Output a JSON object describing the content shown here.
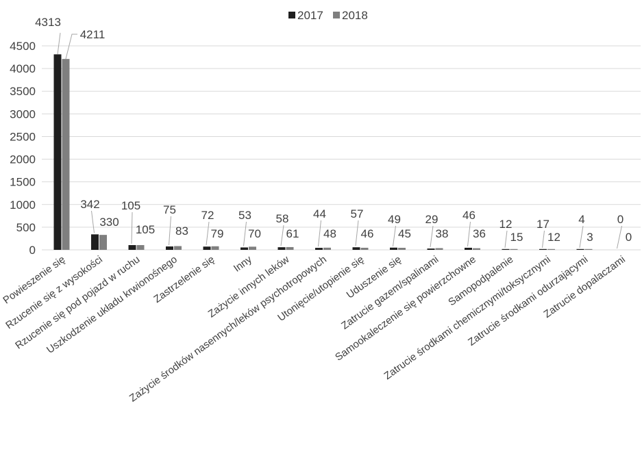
{
  "chart_data": {
    "type": "bar",
    "title": "",
    "xlabel": "",
    "ylabel": "",
    "ylim": [
      0,
      4500
    ],
    "yticks": [
      0,
      500,
      1000,
      1500,
      2000,
      2500,
      3000,
      3500,
      4000,
      4500
    ],
    "grid": true,
    "legend_position": "top",
    "categories": [
      "Powieszenie się",
      "Rzucenie się z wysokości",
      "Rzucenie się pod pojazd w ruchu",
      "Uszkodzenie układu krwionośnego",
      "Zastrzelenie się",
      "Inny",
      "Zażycie innych leków",
      "Zażycie środków nasennych/leków psychotropowych",
      "Utonięcie/utopienie się",
      "Uduszenie się",
      "Zatrucie gazem/spalinami",
      "Samookaleczenie się powierzchowne",
      "Samopodpalenie",
      "Zatrucie środkami chemicznymi/toksycznymi",
      "Zatrucie środkami odurzającymi",
      "Zatrucie dopalaczami"
    ],
    "series": [
      {
        "name": "2017",
        "color": "#1f1f1f",
        "values": [
          4313,
          342,
          105,
          75,
          72,
          53,
          58,
          44,
          57,
          49,
          29,
          46,
          12,
          17,
          4,
          0
        ]
      },
      {
        "name": "2018",
        "color": "#7f7f7f",
        "values": [
          4211,
          330,
          105,
          83,
          79,
          70,
          61,
          48,
          46,
          45,
          38,
          36,
          15,
          12,
          3,
          0
        ]
      }
    ]
  }
}
